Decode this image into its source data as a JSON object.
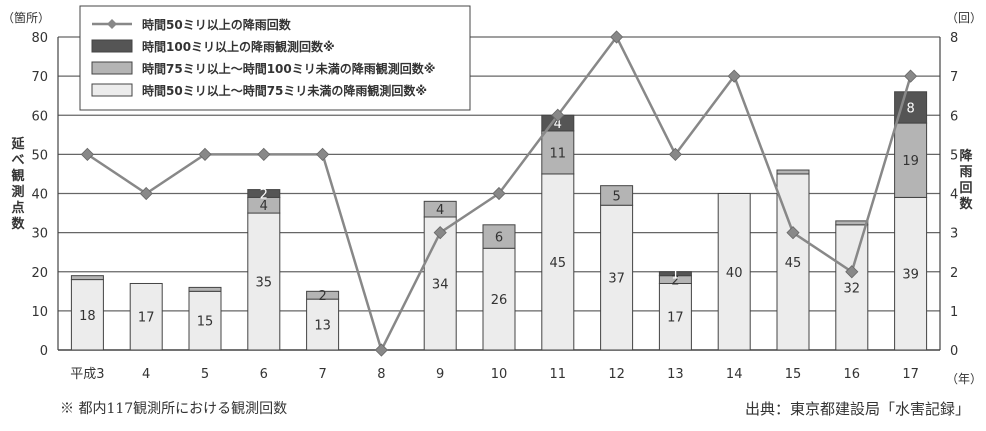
{
  "chart_data": {
    "type": "bar",
    "categories": [
      "平成3",
      "4",
      "5",
      "6",
      "7",
      "8",
      "9",
      "10",
      "11",
      "12",
      "13",
      "14",
      "15",
      "16",
      "17"
    ],
    "x_unit_label": "（年）",
    "left_axis": {
      "unit_label": "（箇所）",
      "title": "延べ観測点数",
      "ylim": [
        0,
        80
      ],
      "ticks": [
        0,
        10,
        20,
        30,
        40,
        50,
        60,
        70,
        80
      ]
    },
    "right_axis": {
      "unit_label": "（回）",
      "title": "降雨回数",
      "ylim": [
        0,
        8
      ],
      "ticks": [
        0,
        1,
        2,
        3,
        4,
        5,
        6,
        7,
        8
      ]
    },
    "series": [
      {
        "name": "時間50ミリ以上～時間75ミリ未満の降雨観測回数※",
        "kind": "bar",
        "axis": "left",
        "color": "#ececec",
        "values": [
          18,
          17,
          15,
          35,
          13,
          0,
          34,
          26,
          45,
          37,
          17,
          40,
          45,
          32,
          39
        ],
        "labels": [
          "18",
          "17",
          "15",
          "35",
          "13",
          "",
          "34",
          "26",
          "45",
          "37",
          "17",
          "40",
          "45",
          "32",
          "39"
        ]
      },
      {
        "name": "時間75ミリ以上～時間100ミリ未満の降雨観測回数※",
        "kind": "bar",
        "axis": "left",
        "color": "#b4b4b4",
        "values": [
          1,
          0,
          1,
          4,
          2,
          0,
          4,
          6,
          11,
          5,
          2,
          0,
          1,
          1,
          19
        ],
        "labels": [
          "",
          "",
          "",
          "4",
          "2",
          "",
          "4",
          "6",
          "11",
          "5",
          "2",
          "",
          "",
          "",
          "19"
        ]
      },
      {
        "name": "時間100ミリ以上の降雨観測回数※",
        "kind": "bar",
        "axis": "left",
        "color": "#555555",
        "values": [
          0,
          0,
          0,
          2,
          0,
          0,
          0,
          0,
          4,
          0,
          1,
          0,
          0,
          0,
          8
        ],
        "labels": [
          "",
          "",
          "",
          "2",
          "",
          "",
          "",
          "",
          "4",
          "",
          "1",
          "",
          "",
          "",
          "8"
        ]
      },
      {
        "name": "時間50ミリ以上の降雨回数",
        "kind": "line",
        "axis": "right",
        "color": "#888888",
        "values": [
          5,
          4,
          5,
          5,
          5,
          0,
          3,
          4,
          6,
          8,
          5,
          7,
          3,
          2,
          7
        ]
      }
    ],
    "legend_position": "top-left",
    "grid": true
  },
  "footer": {
    "note": "※ 都内117観測所における観測回数",
    "source": "出典：東京都建設局「水害記録」"
  }
}
